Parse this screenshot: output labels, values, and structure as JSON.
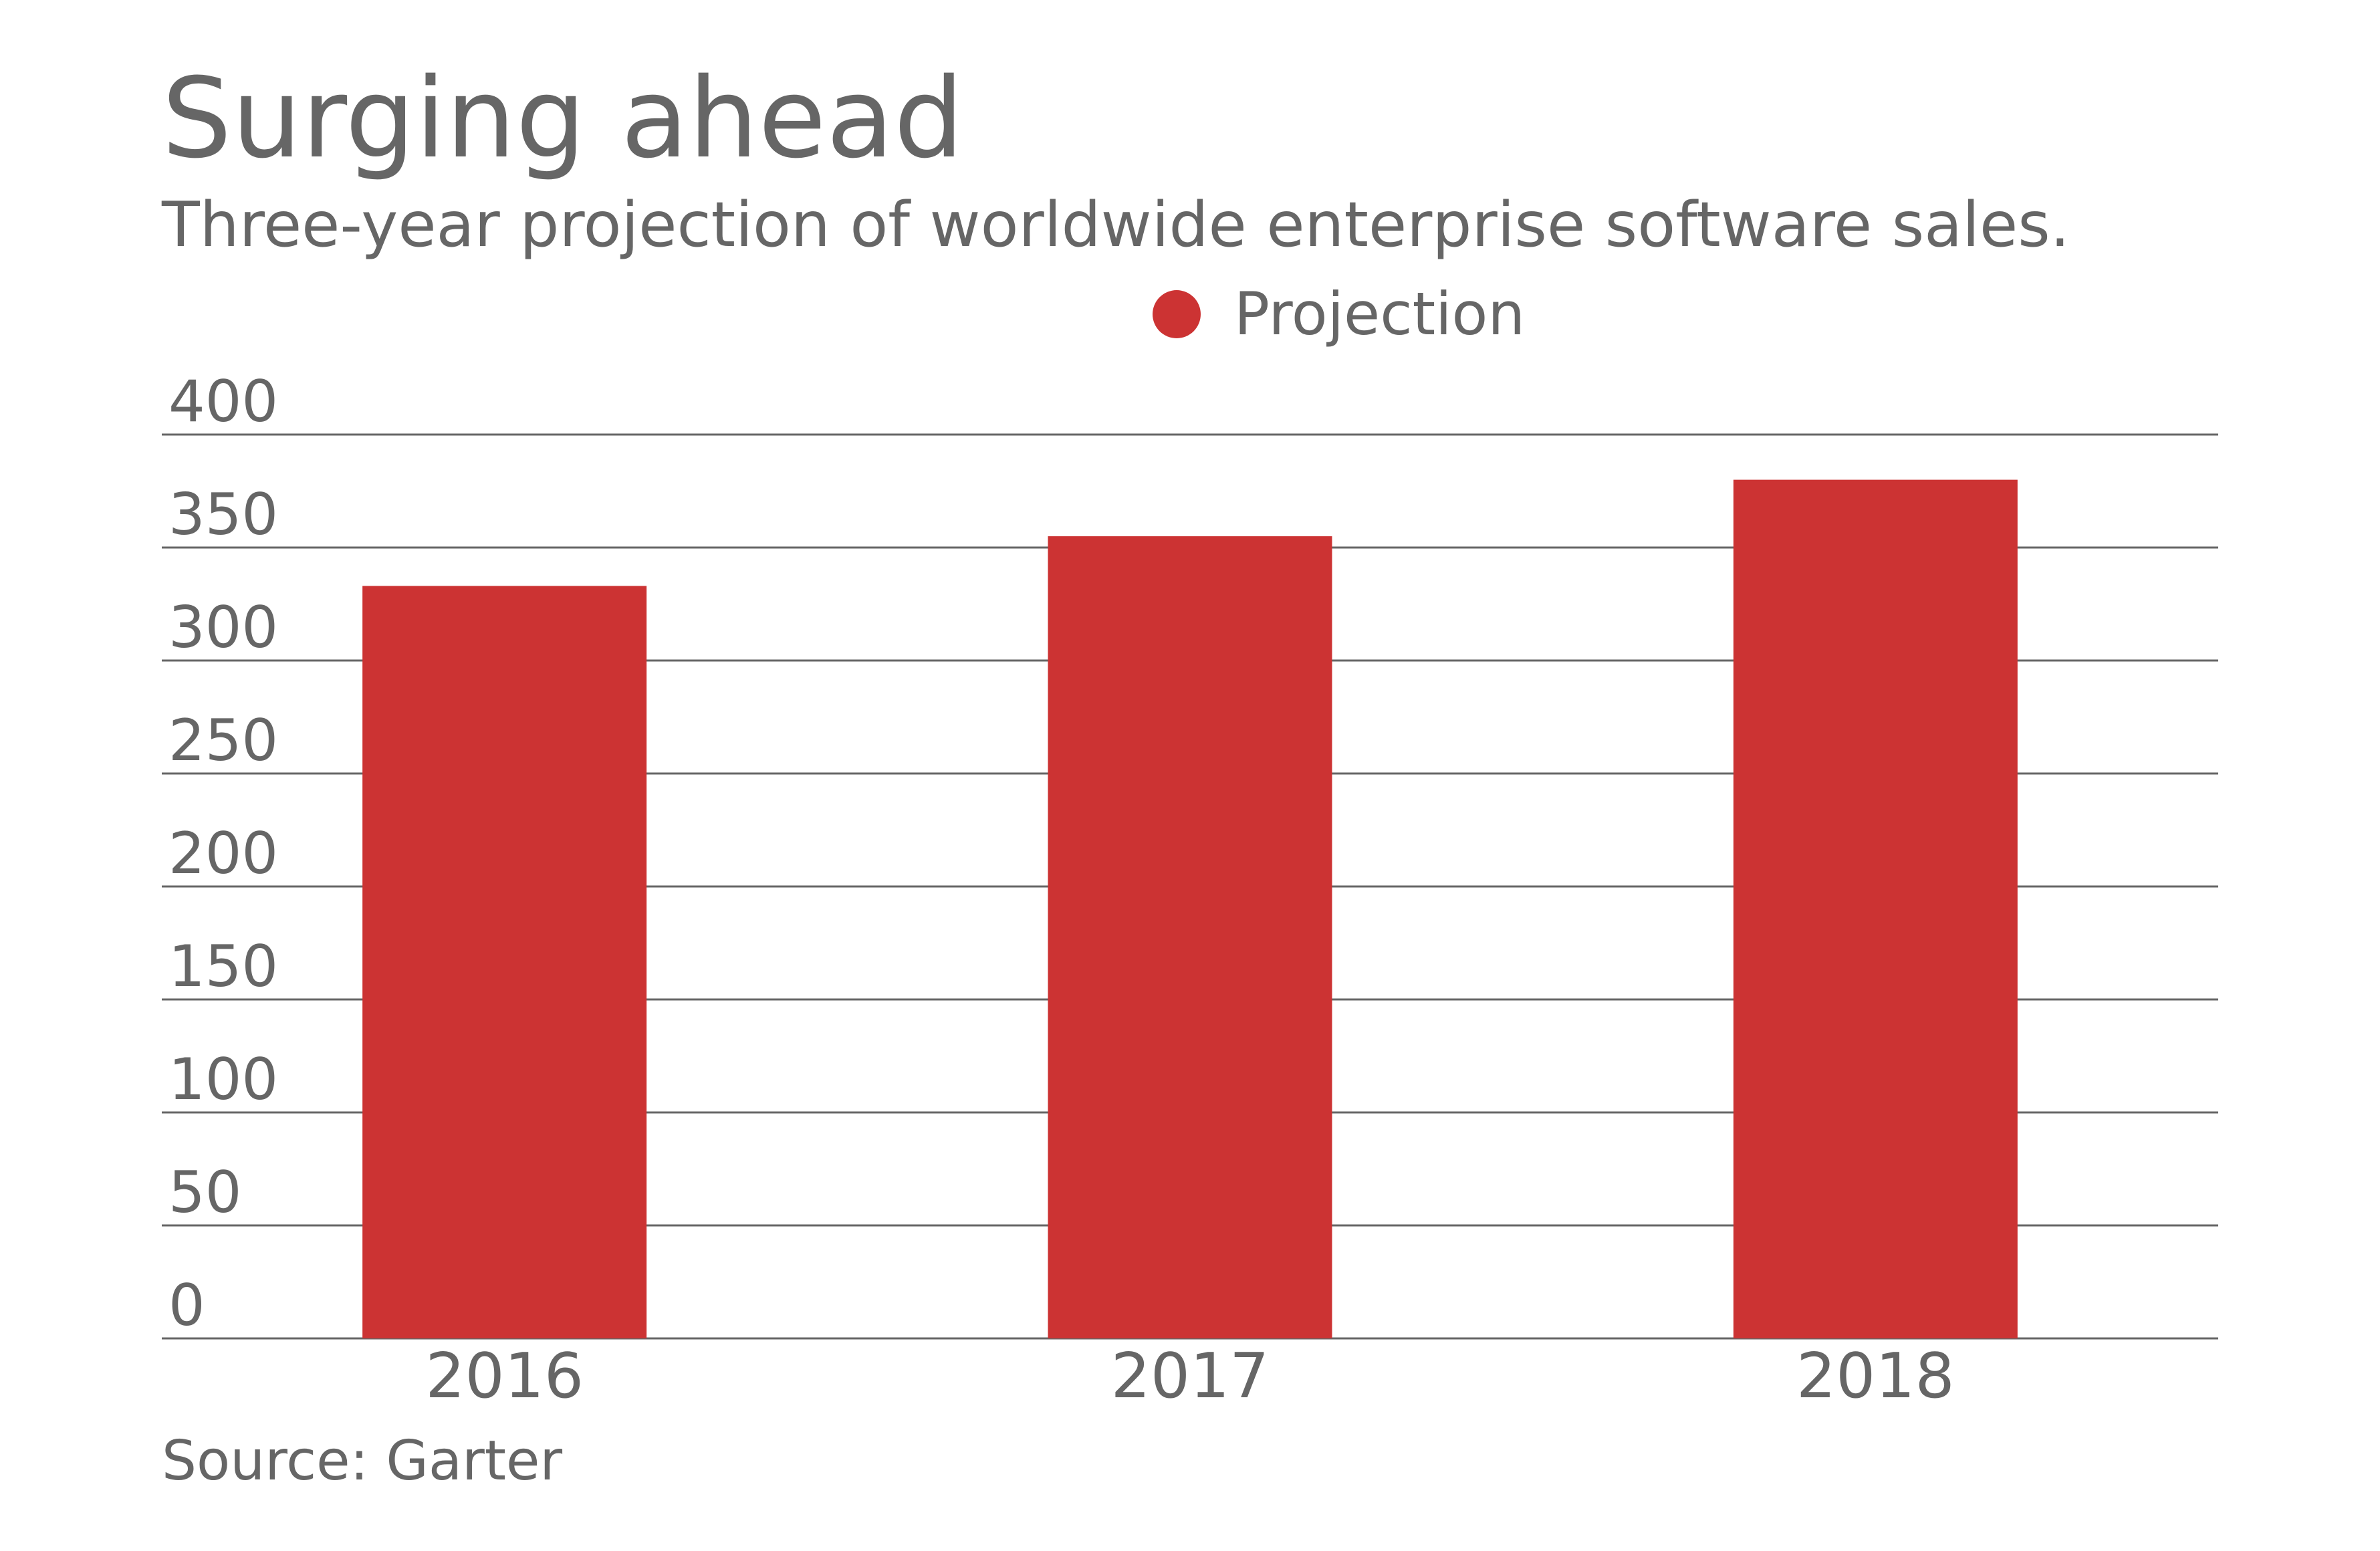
{
  "title": "Surging ahead",
  "subtitle": "Three-year projection of worldwide enterprise software sales.",
  "source": "Source: Garter",
  "colors": {
    "bar": "#cc3333",
    "text": "#666666",
    "grid": "#666666"
  },
  "chart_data": {
    "type": "bar",
    "categories": [
      "2016",
      "2017",
      "2018"
    ],
    "series": [
      {
        "name": "Projection",
        "values": [
          333,
          355,
          380
        ]
      }
    ],
    "ylim": [
      0,
      400
    ],
    "yticks": [
      0,
      50,
      100,
      150,
      200,
      250,
      300,
      350,
      400
    ],
    "xlabel": "",
    "ylabel": "",
    "grid": true,
    "legend": "top-center"
  }
}
